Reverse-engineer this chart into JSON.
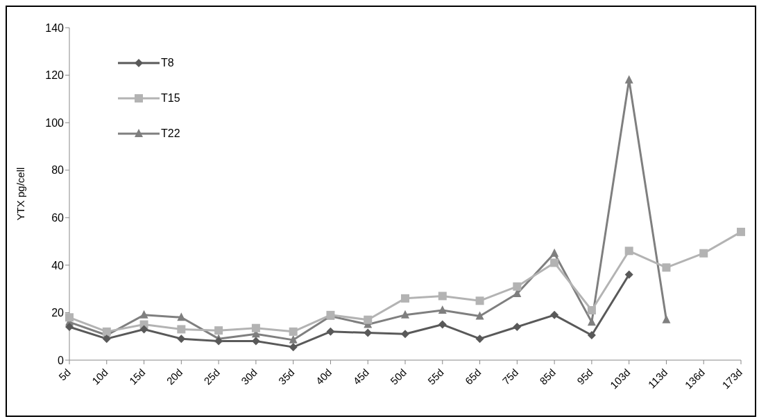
{
  "chart_data": {
    "type": "line",
    "ylabel": "YTX  pg/cell",
    "categories": [
      "5d",
      "10d",
      "15d",
      "20d",
      "25d",
      "30d",
      "35d",
      "40d",
      "45d",
      "50d",
      "55d",
      "65d",
      "75d",
      "85d",
      "95d",
      "103d",
      "113d",
      "136d",
      "173d"
    ],
    "ylim": [
      0,
      140
    ],
    "yticks": [
      0,
      20,
      40,
      60,
      80,
      100,
      120,
      140
    ],
    "grid": false,
    "legend": "top left",
    "series": [
      {
        "name": "T8",
        "color": "#595959",
        "marker": "diamond",
        "values": [
          14,
          9,
          13,
          9,
          8,
          8,
          5.5,
          12,
          11.5,
          11,
          15,
          9,
          14,
          19,
          10.5,
          36,
          null,
          null,
          null
        ]
      },
      {
        "name": "T15",
        "color": "#b3b3b3",
        "marker": "square",
        "values": [
          18,
          12,
          15,
          13,
          12.5,
          13.5,
          12,
          19,
          17,
          26,
          27,
          25,
          31,
          41,
          21,
          46,
          39,
          45,
          54
        ]
      },
      {
        "name": "T22",
        "color": "#7f7f7f",
        "marker": "triangle",
        "values": [
          16,
          10.5,
          19,
          18,
          9,
          11,
          8.5,
          18.5,
          15,
          19,
          21,
          18.5,
          28,
          45,
          16,
          118,
          17,
          null,
          null
        ]
      }
    ]
  }
}
